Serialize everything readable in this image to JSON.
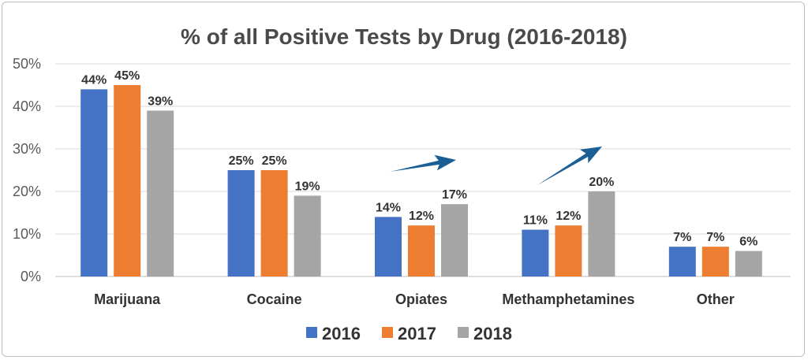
{
  "chart_data": {
    "type": "bar",
    "title": "% of all Positive Tests by Drug (2016-2018)",
    "xlabel": "",
    "ylabel": "",
    "categories": [
      "Marijuana",
      "Cocaine",
      "Opiates",
      "Methamphetamines",
      "Other"
    ],
    "series": [
      {
        "name": "2016",
        "values": [
          44,
          25,
          14,
          11,
          7
        ],
        "color": "#4472C4"
      },
      {
        "name": "2017",
        "values": [
          45,
          25,
          12,
          12,
          7
        ],
        "color": "#ED7D31"
      },
      {
        "name": "2018",
        "values": [
          39,
          19,
          17,
          20,
          6
        ],
        "color": "#A5A5A5"
      }
    ],
    "data_labels": [
      [
        "44%",
        "25%",
        "14%",
        "11%",
        "7%"
      ],
      [
        "45%",
        "25%",
        "12%",
        "12%",
        "7%"
      ],
      [
        "39%",
        "19%",
        "17%",
        "20%",
        "6%"
      ]
    ],
    "ylim": [
      0,
      50
    ],
    "yticks": [
      "0%",
      "10%",
      "20%",
      "30%",
      "40%",
      "50%"
    ],
    "grid": true,
    "legend": "bottom",
    "annotations": [
      {
        "type": "arrow-up",
        "category": "Opiates",
        "color": "#1A5E96"
      },
      {
        "type": "arrow-up",
        "category": "Methamphetamines",
        "color": "#1A5E96"
      }
    ]
  }
}
